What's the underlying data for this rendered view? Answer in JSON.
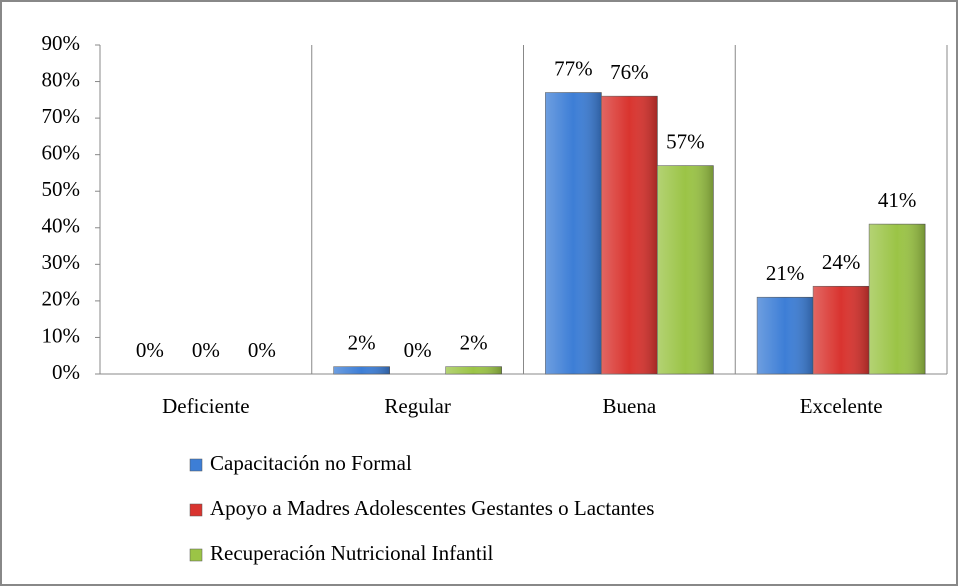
{
  "chart_data": {
    "type": "bar",
    "categories": [
      "Deficiente",
      "Regular",
      "Buena",
      "Excelente"
    ],
    "series": [
      {
        "name": "Capacitación no Formal",
        "color": "#3d7ed6",
        "values": [
          0,
          2,
          77,
          21
        ],
        "value_labels": [
          "0%",
          "2%",
          "77%",
          "21%"
        ]
      },
      {
        "name": "Apoyo a Madres Adolescentes Gestantes o Lactantes",
        "color": "#d9342f",
        "values": [
          0,
          0,
          76,
          24
        ],
        "value_labels": [
          "0%",
          "0%",
          "76%",
          "24%"
        ]
      },
      {
        "name": "Recuperación Nutricional Infantil",
        "color": "#9bc446",
        "values": [
          0,
          2,
          57,
          41
        ],
        "value_labels": [
          "0%",
          "2%",
          "57%",
          "41%"
        ]
      }
    ],
    "ylim": [
      0,
      90
    ],
    "yticks": [
      {
        "value": 0,
        "label": "0%"
      },
      {
        "value": 10,
        "label": "10%"
      },
      {
        "value": 20,
        "label": "20%"
      },
      {
        "value": 30,
        "label": "30%"
      },
      {
        "value": 40,
        "label": "40%"
      },
      {
        "value": 50,
        "label": "50%"
      },
      {
        "value": 60,
        "label": "60%"
      },
      {
        "value": 70,
        "label": "70%"
      },
      {
        "value": 80,
        "label": "80%"
      },
      {
        "value": 90,
        "label": "90%"
      }
    ],
    "legend": "bottom"
  }
}
